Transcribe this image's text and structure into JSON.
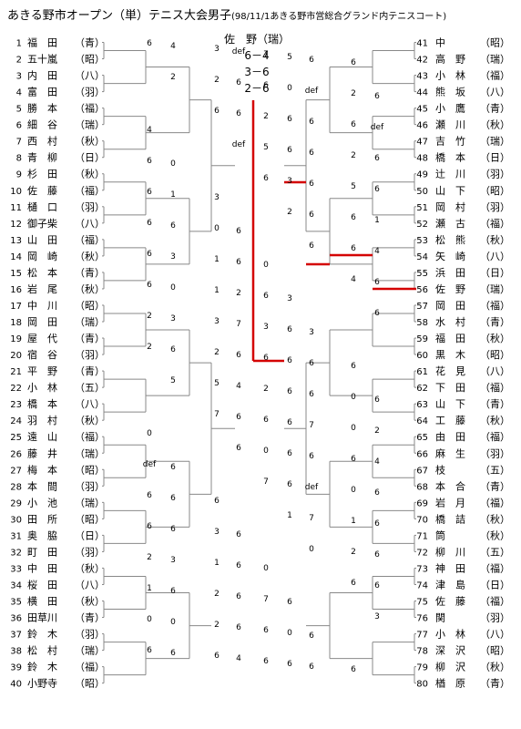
{
  "title": "あきる野市オープン（単）テニス大会男子",
  "subtitle": "(98/11/1あきる野市営総合グランド内テニスコート)",
  "final": {
    "champion": "佐　野（瑞）",
    "scores": [
      "6－4",
      "3－6",
      "2－6"
    ]
  },
  "players": [
    {
      "no": "1",
      "name": "福　田",
      "aff": "（青）"
    },
    {
      "no": "2",
      "name": "五十嵐",
      "aff": "（昭）"
    },
    {
      "no": "3",
      "name": "内　田",
      "aff": "（八）"
    },
    {
      "no": "4",
      "name": "富　田",
      "aff": "（羽）"
    },
    {
      "no": "5",
      "name": "勝　本",
      "aff": "（福）"
    },
    {
      "no": "6",
      "name": "細　谷",
      "aff": "（瑞）"
    },
    {
      "no": "7",
      "name": "西　村",
      "aff": "（秋）"
    },
    {
      "no": "8",
      "name": "青　柳",
      "aff": "（日）"
    },
    {
      "no": "9",
      "name": "杉　田",
      "aff": "（秋）"
    },
    {
      "no": "10",
      "name": "佐　藤",
      "aff": "（福）"
    },
    {
      "no": "11",
      "name": "樋　口",
      "aff": "（羽）"
    },
    {
      "no": "12",
      "name": "御子柴",
      "aff": "（八）"
    },
    {
      "no": "13",
      "name": "山　田",
      "aff": "（福）"
    },
    {
      "no": "14",
      "name": "岡　崎",
      "aff": "（秋）"
    },
    {
      "no": "15",
      "name": "松　本",
      "aff": "（青）"
    },
    {
      "no": "16",
      "name": "岩　尾",
      "aff": "（秋）"
    },
    {
      "no": "17",
      "name": "中　川",
      "aff": "（昭）"
    },
    {
      "no": "18",
      "name": "岡　田",
      "aff": "（瑞）"
    },
    {
      "no": "19",
      "name": "屋　代",
      "aff": "（青）"
    },
    {
      "no": "20",
      "name": "宿　谷",
      "aff": "（羽）"
    },
    {
      "no": "21",
      "name": "平　野",
      "aff": "（青）"
    },
    {
      "no": "22",
      "name": "小　林",
      "aff": "（五）"
    },
    {
      "no": "23",
      "name": "橋　本",
      "aff": "（八）"
    },
    {
      "no": "24",
      "name": "羽　村",
      "aff": "（秋）"
    },
    {
      "no": "25",
      "name": "遠　山",
      "aff": "（福）"
    },
    {
      "no": "26",
      "name": "藤　井",
      "aff": "（瑞）"
    },
    {
      "no": "27",
      "name": "梅　本",
      "aff": "（昭）"
    },
    {
      "no": "28",
      "name": "本　間",
      "aff": "（羽）"
    },
    {
      "no": "29",
      "name": "小　池",
      "aff": "（瑞）"
    },
    {
      "no": "30",
      "name": "田　所",
      "aff": "（昭）"
    },
    {
      "no": "31",
      "name": "奥　脇",
      "aff": "（日）"
    },
    {
      "no": "32",
      "name": "町　田",
      "aff": "（羽）"
    },
    {
      "no": "33",
      "name": "中　田",
      "aff": "（秋）"
    },
    {
      "no": "34",
      "name": "桜　田",
      "aff": "（八）"
    },
    {
      "no": "35",
      "name": "横　田",
      "aff": "（秋）"
    },
    {
      "no": "36",
      "name": "田草川",
      "aff": "（青）"
    },
    {
      "no": "37",
      "name": "鈴　木",
      "aff": "（羽）"
    },
    {
      "no": "38",
      "name": "松　村",
      "aff": "（瑞）"
    },
    {
      "no": "39",
      "name": "鈴　木",
      "aff": "（福）"
    },
    {
      "no": "40",
      "name": "小野寺",
      "aff": "（昭）"
    },
    {
      "no": "41",
      "name": "中",
      "aff": "（昭）"
    },
    {
      "no": "42",
      "name": "高　野",
      "aff": "（瑞）"
    },
    {
      "no": "43",
      "name": "小　林",
      "aff": "（福）"
    },
    {
      "no": "44",
      "name": "熊　坂",
      "aff": "（八）"
    },
    {
      "no": "45",
      "name": "小　鷹",
      "aff": "（青）"
    },
    {
      "no": "46",
      "name": "瀬　川",
      "aff": "（秋）"
    },
    {
      "no": "47",
      "name": "吉　竹",
      "aff": "（瑞）"
    },
    {
      "no": "48",
      "name": "橋　本",
      "aff": "（日）"
    },
    {
      "no": "49",
      "name": "辻　川",
      "aff": "（羽）"
    },
    {
      "no": "50",
      "name": "山　下",
      "aff": "（昭）"
    },
    {
      "no": "51",
      "name": "岡　村",
      "aff": "（羽）"
    },
    {
      "no": "52",
      "name": "瀬　古",
      "aff": "（福）"
    },
    {
      "no": "53",
      "name": "松　熊",
      "aff": "（秋）"
    },
    {
      "no": "54",
      "name": "矢　崎",
      "aff": "（八）"
    },
    {
      "no": "55",
      "name": "浜　田",
      "aff": "（日）"
    },
    {
      "no": "56",
      "name": "佐　野",
      "aff": "（瑞）"
    },
    {
      "no": "57",
      "name": "岡　田",
      "aff": "（福）"
    },
    {
      "no": "58",
      "name": "水　村",
      "aff": "（青）"
    },
    {
      "no": "59",
      "name": "福　田",
      "aff": "（秋）"
    },
    {
      "no": "60",
      "name": "黒　木",
      "aff": "（昭）"
    },
    {
      "no": "61",
      "name": "花　見",
      "aff": "（八）"
    },
    {
      "no": "62",
      "name": "下　田",
      "aff": "（福）"
    },
    {
      "no": "63",
      "name": "山　下",
      "aff": "（青）"
    },
    {
      "no": "64",
      "name": "工　藤",
      "aff": "（秋）"
    },
    {
      "no": "65",
      "name": "由　田",
      "aff": "（福）"
    },
    {
      "no": "66",
      "name": "麻　生",
      "aff": "（羽）"
    },
    {
      "no": "67",
      "name": "枝",
      "aff": "（五）"
    },
    {
      "no": "68",
      "name": "本　合",
      "aff": "（青）"
    },
    {
      "no": "69",
      "name": "岩　月",
      "aff": "（福）"
    },
    {
      "no": "70",
      "name": "橋　詰",
      "aff": "（秋）"
    },
    {
      "no": "71",
      "name": "筒",
      "aff": "（秋）"
    },
    {
      "no": "72",
      "name": "柳　川",
      "aff": "（五）"
    },
    {
      "no": "73",
      "name": "神　田",
      "aff": "（福）"
    },
    {
      "no": "74",
      "name": "津　島",
      "aff": "（日）"
    },
    {
      "no": "75",
      "name": "佐　藤",
      "aff": "（福）"
    },
    {
      "no": "76",
      "name": "関",
      "aff": "（羽）"
    },
    {
      "no": "77",
      "name": "小　林",
      "aff": "（八）"
    },
    {
      "no": "78",
      "name": "深　沢",
      "aff": "（昭）"
    },
    {
      "no": "79",
      "name": "柳　沢",
      "aff": "（秋）"
    },
    {
      "no": "80",
      "name": "楢　原",
      "aff": "（青）"
    }
  ],
  "scores": [
    "6",
    "2",
    "6",
    "def",
    "6",
    "2",
    "6",
    "4",
    "6",
    "2",
    "5",
    "7",
    "6",
    "7",
    "1",
    "0",
    "6",
    "3",
    "6",
    "4",
    "2",
    "6",
    "5",
    "3",
    "6",
    "6",
    "6",
    "2",
    "6",
    "5",
    "6",
    "0",
    "6",
    "7",
    "2",
    "6",
    "0",
    "6",
    "3",
    "6",
    "2",
    "6",
    "6",
    "6",
    "4",
    "6",
    "3",
    "2",
    "4",
    "6",
    "6",
    "def",
    "1",
    "6",
    "1",
    "0",
    "6",
    "def",
    "6",
    "6",
    "6",
    "5",
    "1",
    "6",
    "0",
    "3",
    "6",
    "2",
    "6",
    "6",
    "0",
    "6",
    "2",
    "6",
    "2",
    "4",
    "7",
    "0",
    "6",
    "2",
    "6",
    "6",
    "3",
    "1",
    "7",
    "6",
    "6",
    "7",
    "6",
    "6",
    "6",
    "3",
    "2",
    "6",
    "6",
    "5",
    "def",
    "6",
    "6",
    "6",
    "6",
    "1",
    "2",
    "3",
    "6",
    "6",
    "0",
    "4",
    "6",
    "6",
    "1",
    "6",
    "6",
    "6",
    "6",
    "2",
    "def",
    "6",
    "1",
    "0",
    "6",
    "6",
    "6",
    "6",
    "0",
    "2",
    "def",
    "6",
    "3",
    "6",
    "7",
    "0",
    "6",
    "6",
    "6",
    "4",
    "0",
    "3",
    "6",
    "0",
    "3",
    "3",
    "6",
    "6",
    "0",
    "6",
    "6",
    "6",
    "0",
    "6",
    "6",
    "6"
  ]
}
